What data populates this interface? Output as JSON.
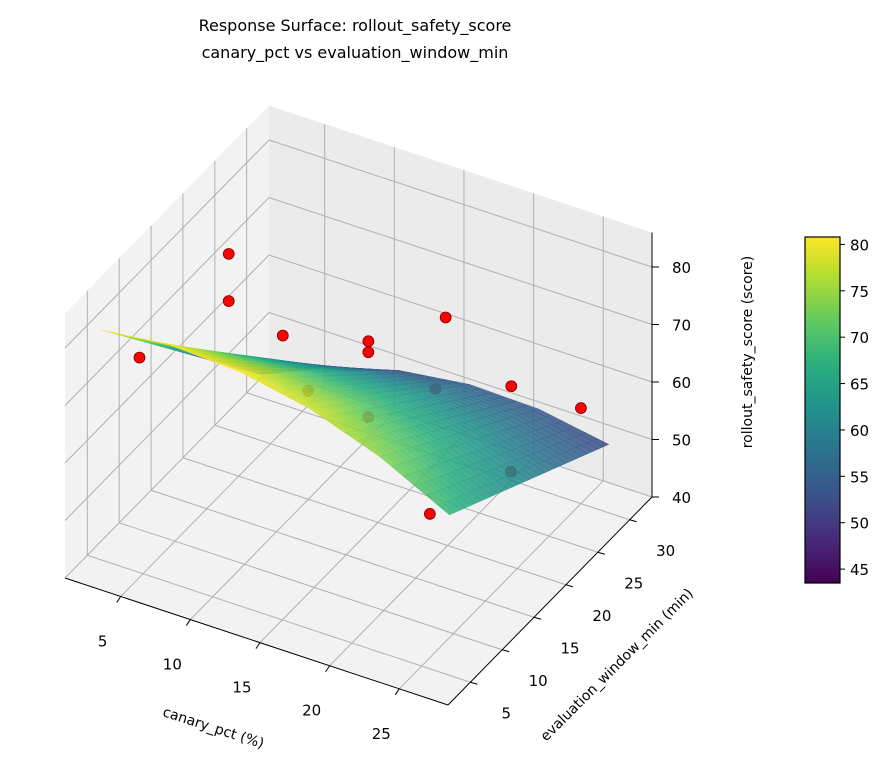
{
  "chart_data": {
    "type": "surface3d",
    "title": "Response Surface: rollout_safety_score",
    "subtitle": "canary_pct vs evaluation_window_min",
    "xlabel": "canary_pct (%)",
    "ylabel": "evaluation_window_min (min)",
    "zlabel": "rollout_safety_score (score)",
    "xlim": [
      1,
      28.5
    ],
    "ylim": [
      1.5,
      33.5
    ],
    "zlim": [
      40,
      86
    ],
    "xticks": [
      5,
      10,
      15,
      20,
      25
    ],
    "yticks": [
      5,
      10,
      15,
      20,
      25,
      30
    ],
    "zticks": [
      40,
      50,
      60,
      70,
      80
    ],
    "colorbar": {
      "cmap": "viridis",
      "ticks": [
        45,
        50,
        55,
        60,
        65,
        70,
        75,
        80
      ],
      "range": [
        43.5,
        80.8
      ]
    },
    "grid": true,
    "surface": {
      "x": [
        2,
        7,
        12,
        17,
        22,
        27
      ],
      "y": [
        5,
        10,
        15,
        20,
        25,
        30
      ],
      "z": [
        [
          80.0,
          81.3,
          80.7,
          78.3,
          74.0,
          67.9
        ],
        [
          72.8,
          74.9,
          75.1,
          73.5,
          70.0,
          64.7
        ],
        [
          65.6,
          68.5,
          69.5,
          68.7,
          66.0,
          61.5
        ],
        [
          58.4,
          62.1,
          63.9,
          63.9,
          62.0,
          58.3
        ],
        [
          51.2,
          55.7,
          58.3,
          59.1,
          58.0,
          55.1
        ],
        [
          44.0,
          49.3,
          52.7,
          54.3,
          54.0,
          51.9
        ]
      ]
    },
    "points": [
      {
        "x": 2,
        "y": 11,
        "z": 68.4
      },
      {
        "x": 2,
        "y": 25,
        "z": 70.6
      },
      {
        "x": 2,
        "y": 25,
        "z": 62.4
      },
      {
        "x": 10,
        "y": 16,
        "z": 73.0
      },
      {
        "x": 15,
        "y": 18.5,
        "z": 73.2
      },
      {
        "x": 15,
        "y": 18.5,
        "z": 71.3
      },
      {
        "x": 20,
        "y": 19.7,
        "z": 80.0
      },
      {
        "x": 15,
        "y": 29,
        "z": 53.0
      },
      {
        "x": 20,
        "y": 30,
        "z": 56.4
      },
      {
        "x": 25,
        "y": 30,
        "z": 56.6
      },
      {
        "x": 10,
        "y": 20,
        "z": 58.9
      },
      {
        "x": 15,
        "y": 18.5,
        "z": 60.0
      },
      {
        "x": 25,
        "y": 19,
        "z": 58.0
      },
      {
        "x": 25,
        "y": 6.3,
        "z": 65.0
      }
    ],
    "point_color": "#ff0000"
  }
}
